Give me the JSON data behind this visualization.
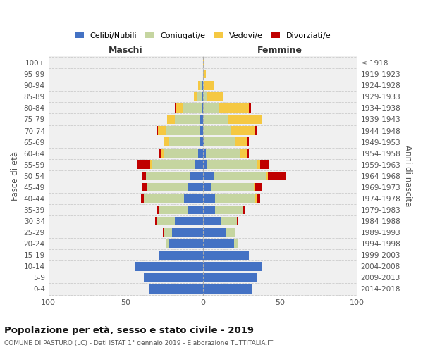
{
  "age_groups": [
    "0-4",
    "5-9",
    "10-14",
    "15-19",
    "20-24",
    "25-29",
    "30-34",
    "35-39",
    "40-44",
    "45-49",
    "50-54",
    "55-59",
    "60-64",
    "65-69",
    "70-74",
    "75-79",
    "80-84",
    "85-89",
    "90-94",
    "95-99",
    "100+"
  ],
  "birth_years": [
    "2014-2018",
    "2009-2013",
    "2004-2008",
    "1999-2003",
    "1994-1998",
    "1989-1993",
    "1984-1988",
    "1979-1983",
    "1974-1978",
    "1969-1973",
    "1964-1968",
    "1959-1963",
    "1954-1958",
    "1949-1953",
    "1944-1948",
    "1939-1943",
    "1934-1938",
    "1929-1933",
    "1924-1928",
    "1919-1923",
    "≤ 1918"
  ],
  "males": {
    "celibi": [
      35,
      38,
      44,
      28,
      22,
      20,
      18,
      10,
      12,
      10,
      8,
      5,
      3,
      2,
      2,
      2,
      1,
      1,
      1,
      0,
      0
    ],
    "coniugati": [
      0,
      0,
      0,
      0,
      2,
      5,
      12,
      18,
      26,
      26,
      29,
      28,
      22,
      20,
      22,
      16,
      12,
      3,
      1,
      0,
      0
    ],
    "vedovi": [
      0,
      0,
      0,
      0,
      0,
      0,
      0,
      0,
      0,
      0,
      0,
      1,
      2,
      3,
      5,
      5,
      4,
      2,
      1,
      0,
      0
    ],
    "divorziati": [
      0,
      0,
      0,
      0,
      0,
      1,
      1,
      2,
      2,
      3,
      2,
      9,
      1,
      0,
      1,
      0,
      1,
      0,
      0,
      0,
      0
    ]
  },
  "females": {
    "nubili": [
      32,
      35,
      38,
      30,
      20,
      15,
      12,
      8,
      8,
      5,
      7,
      3,
      2,
      1,
      0,
      0,
      0,
      0,
      0,
      0,
      0
    ],
    "coniugate": [
      0,
      0,
      0,
      0,
      3,
      6,
      10,
      18,
      26,
      28,
      34,
      32,
      22,
      20,
      18,
      16,
      10,
      3,
      1,
      0,
      0
    ],
    "vedove": [
      0,
      0,
      0,
      0,
      0,
      0,
      0,
      0,
      1,
      1,
      1,
      2,
      5,
      8,
      16,
      22,
      20,
      10,
      6,
      2,
      1
    ],
    "divorziate": [
      0,
      0,
      0,
      0,
      0,
      0,
      1,
      1,
      2,
      4,
      12,
      6,
      1,
      1,
      1,
      0,
      1,
      0,
      0,
      0,
      0
    ]
  },
  "colors": {
    "celibi": "#4472c4",
    "coniugati": "#c5d5a0",
    "vedovi": "#f5c842",
    "divorziati": "#c00000"
  },
  "xlim": 100,
  "title": "Popolazione per età, sesso e stato civile - 2019",
  "subtitle": "COMUNE DI PASTURO (LC) - Dati ISTAT 1° gennaio 2019 - Elaborazione TUTTITALIA.IT",
  "ylabel": "Fasce di età",
  "ylabel_right": "Anni di nascita",
  "xlabel_left": "Maschi",
  "xlabel_right": "Femmine",
  "legend_labels": [
    "Celibi/Nubili",
    "Coniugati/e",
    "Vedovi/e",
    "Divorziati/e"
  ],
  "background_color": "#ffffff",
  "plot_bg": "#f0f0f0",
  "grid_color": "#cccccc"
}
